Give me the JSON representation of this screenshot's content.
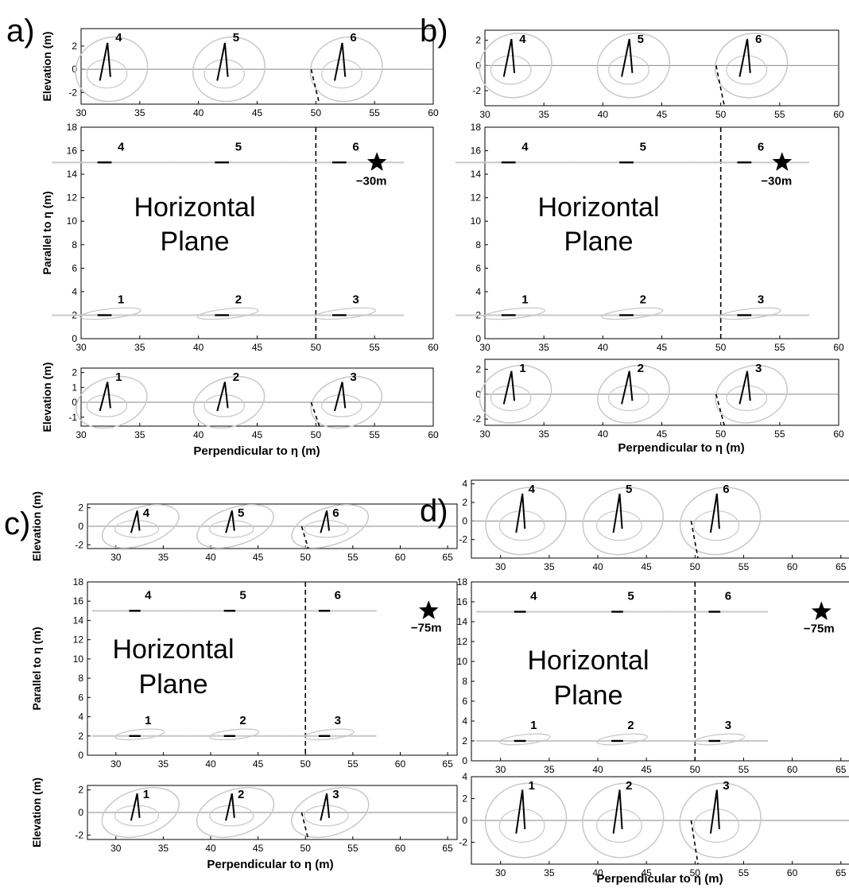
{
  "figure": {
    "style": {
      "axis_color": "#000000",
      "trace_black": "#000000",
      "trace_gray": "#c8c8c8"
    },
    "labels": {
      "elevation": "Elevation (m)",
      "parallel": "Parallel to η (m)",
      "perpendicular": "Perpendicular to η (m)",
      "plane_line1": "Horizontal",
      "plane_line2": "Plane"
    }
  },
  "chart_data": [
    {
      "panel": "a)",
      "type": "line",
      "source_depth": "−30m",
      "subplots": {
        "top": {
          "ylabel": "Elevation (m)",
          "xlim": [
            30,
            60
          ],
          "ylim": [
            -3,
            3.5
          ],
          "xticks": [
            30,
            35,
            40,
            45,
            50,
            55,
            60
          ],
          "yticks": [
            -2,
            0,
            2
          ],
          "sensors": [
            {
              "label": "4",
              "x": 32
            },
            {
              "label": "5",
              "x": 42
            },
            {
              "label": "6",
              "x": 52
            }
          ]
        },
        "middle": {
          "ylabel": "Parallel to η (m)",
          "xlim": [
            30,
            60
          ],
          "ylim": [
            0,
            18
          ],
          "xticks": [
            30,
            35,
            40,
            45,
            50,
            55,
            60
          ],
          "yticks": [
            0,
            2,
            4,
            6,
            8,
            10,
            12,
            14,
            16,
            18
          ],
          "sensors": [
            {
              "label": "1",
              "x": 32,
              "y": 2
            },
            {
              "label": "2",
              "x": 42,
              "y": 2
            },
            {
              "label": "3",
              "x": 52,
              "y": 2
            },
            {
              "label": "4",
              "x": 32,
              "y": 15
            },
            {
              "label": "5",
              "x": 42,
              "y": 15
            },
            {
              "label": "6",
              "x": 52,
              "y": 15
            }
          ],
          "dashed_line_x": 50,
          "star": {
            "x": 55.2,
            "y": 15
          }
        },
        "bottom": {
          "ylabel": "Elevation (m)",
          "xlabel": "Perpendicular to η (m)",
          "xlim": [
            30,
            60
          ],
          "ylim": [
            -1.6,
            2.3
          ],
          "xticks": [
            30,
            35,
            40,
            45,
            50,
            55,
            60
          ],
          "yticks": [
            -1,
            0,
            1,
            2
          ],
          "sensors": [
            {
              "label": "1",
              "x": 32
            },
            {
              "label": "2",
              "x": 42
            },
            {
              "label": "3",
              "x": 52
            }
          ]
        }
      }
    },
    {
      "panel": "b)",
      "type": "line",
      "source_depth": "−30m",
      "subplots": {
        "top": {
          "ylabel": "",
          "xlim": [
            30,
            60
          ],
          "ylim": [
            -3.2,
            2.8
          ],
          "xticks": [
            30,
            35,
            40,
            45,
            50,
            55,
            60
          ],
          "yticks": [
            -2,
            0,
            2
          ],
          "sensors": [
            {
              "label": "4",
              "x": 32
            },
            {
              "label": "5",
              "x": 42
            },
            {
              "label": "6",
              "x": 52
            }
          ]
        },
        "middle": {
          "ylabel": "",
          "xlim": [
            30,
            60
          ],
          "ylim": [
            0,
            18
          ],
          "xticks": [
            30,
            35,
            40,
            45,
            50,
            55,
            60
          ],
          "yticks": [
            0,
            2,
            4,
            6,
            8,
            10,
            12,
            14,
            16,
            18
          ],
          "sensors": [
            {
              "label": "1",
              "x": 32,
              "y": 2
            },
            {
              "label": "2",
              "x": 42,
              "y": 2
            },
            {
              "label": "3",
              "x": 52,
              "y": 2
            },
            {
              "label": "4",
              "x": 32,
              "y": 15
            },
            {
              "label": "5",
              "x": 42,
              "y": 15
            },
            {
              "label": "6",
              "x": 52,
              "y": 15
            }
          ],
          "dashed_line_x": 50,
          "star": {
            "x": 55.2,
            "y": 15
          }
        },
        "bottom": {
          "ylabel": "",
          "xlabel": "Perpendicular to η (m)",
          "xlim": [
            30,
            60
          ],
          "ylim": [
            -2.5,
            2.8
          ],
          "xticks": [
            30,
            35,
            40,
            45,
            50,
            55,
            60
          ],
          "yticks": [
            -2,
            0,
            2
          ],
          "sensors": [
            {
              "label": "1",
              "x": 32
            },
            {
              "label": "2",
              "x": 42
            },
            {
              "label": "3",
              "x": 52
            }
          ]
        }
      }
    },
    {
      "panel": "c)",
      "type": "line",
      "source_depth": "−75m",
      "subplots": {
        "top": {
          "ylabel": "Elevation (m)",
          "xlim": [
            27,
            66
          ],
          "ylim": [
            -2.4,
            2.4
          ],
          "xticks": [
            30,
            35,
            40,
            45,
            50,
            55,
            60,
            65
          ],
          "yticks": [
            -2,
            0,
            2
          ],
          "sensors": [
            {
              "label": "4",
              "x": 32
            },
            {
              "label": "5",
              "x": 42
            },
            {
              "label": "6",
              "x": 52
            }
          ]
        },
        "middle": {
          "ylabel": "Parallel to η (m)",
          "xlim": [
            27,
            66
          ],
          "ylim": [
            0,
            18
          ],
          "xticks": [
            30,
            35,
            40,
            45,
            50,
            55,
            60,
            65
          ],
          "yticks": [
            0,
            2,
            4,
            6,
            8,
            10,
            12,
            14,
            16,
            18
          ],
          "sensors": [
            {
              "label": "1",
              "x": 32,
              "y": 2
            },
            {
              "label": "2",
              "x": 42,
              "y": 2
            },
            {
              "label": "3",
              "x": 52,
              "y": 2
            },
            {
              "label": "4",
              "x": 32,
              "y": 15
            },
            {
              "label": "5",
              "x": 42,
              "y": 15
            },
            {
              "label": "6",
              "x": 52,
              "y": 15
            }
          ],
          "dashed_line_x": 50,
          "star": {
            "x": 63,
            "y": 15
          }
        },
        "bottom": {
          "ylabel": "Elevation (m)",
          "xlabel": "Perpendicular to η (m)",
          "xlim": [
            27,
            66
          ],
          "ylim": [
            -2.4,
            2.4
          ],
          "xticks": [
            30,
            35,
            40,
            45,
            50,
            55,
            60,
            65
          ],
          "yticks": [
            -2,
            0,
            2
          ],
          "sensors": [
            {
              "label": "1",
              "x": 32
            },
            {
              "label": "2",
              "x": 42
            },
            {
              "label": "3",
              "x": 52
            }
          ]
        }
      }
    },
    {
      "panel": "d)",
      "type": "line",
      "source_depth": "−75m",
      "subplots": {
        "top": {
          "ylabel": "",
          "xlim": [
            27,
            66
          ],
          "ylim": [
            -4,
            4.4
          ],
          "xticks": [
            30,
            35,
            40,
            45,
            50,
            55,
            60,
            65
          ],
          "yticks": [
            -2,
            0,
            2,
            4
          ],
          "sensors": [
            {
              "label": "4",
              "x": 32
            },
            {
              "label": "5",
              "x": 42
            },
            {
              "label": "6",
              "x": 52
            }
          ]
        },
        "middle": {
          "ylabel": "",
          "xlim": [
            27,
            66
          ],
          "ylim": [
            0,
            18
          ],
          "xticks": [
            30,
            35,
            40,
            45,
            50,
            55,
            60,
            65
          ],
          "yticks": [
            0,
            2,
            4,
            6,
            8,
            10,
            12,
            14,
            16,
            18
          ],
          "sensors": [
            {
              "label": "1",
              "x": 32,
              "y": 2
            },
            {
              "label": "2",
              "x": 42,
              "y": 2
            },
            {
              "label": "3",
              "x": 52,
              "y": 2
            },
            {
              "label": "4",
              "x": 32,
              "y": 15
            },
            {
              "label": "5",
              "x": 42,
              "y": 15
            },
            {
              "label": "6",
              "x": 52,
              "y": 15
            }
          ],
          "dashed_line_x": 50,
          "star": {
            "x": 63,
            "y": 15
          }
        },
        "bottom": {
          "ylabel": "",
          "xlabel": "Perpendicular to η (m)",
          "xlim": [
            27,
            66
          ],
          "ylim": [
            -4,
            4
          ],
          "xticks": [
            30,
            35,
            40,
            45,
            50,
            55,
            60,
            65
          ],
          "yticks": [
            -2,
            0,
            2,
            4
          ],
          "sensors": [
            {
              "label": "1",
              "x": 32
            },
            {
              "label": "2",
              "x": 42
            },
            {
              "label": "3",
              "x": 52
            }
          ]
        }
      }
    }
  ]
}
